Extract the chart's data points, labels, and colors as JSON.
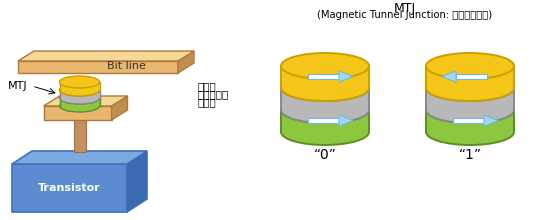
{
  "bg_color": "#ffffff",
  "left_label": "MTJ",
  "bit_line_label": "Bit line",
  "transistor_label": "Transistor",
  "title_main": "MTJ",
  "title_sub": "(Magnetic Tunnel Junction: 자기터널접합)",
  "layer_labels": [
    "기록층",
    "터널배리어",
    "고정층"
  ],
  "zero_label": "“0”",
  "one_label": "“1”",
  "transistor_color_front": "#5b8bd0",
  "transistor_color_top": "#7aaae0",
  "transistor_color_right": "#3a6ab0",
  "bit_line_color_front": "#e8b870",
  "bit_line_color_top": "#f5d898",
  "bit_line_color_right": "#c09050",
  "platform_color_front": "#e8b870",
  "platform_color_top": "#f5d898",
  "platform_color_right": "#c09050",
  "contact_color": "#c49060",
  "layer_gold_color": "#f5c518",
  "layer_gold_edge": "#c8a000",
  "layer_gray_color": "#b8b8b8",
  "layer_gray_edge": "#888888",
  "layer_green_color": "#8dc63f",
  "layer_green_edge": "#5a9020",
  "arrow_fill_start": "#ffffff",
  "arrow_fill_end": "#a0d8ef",
  "arrow_edge": "#70b8df"
}
